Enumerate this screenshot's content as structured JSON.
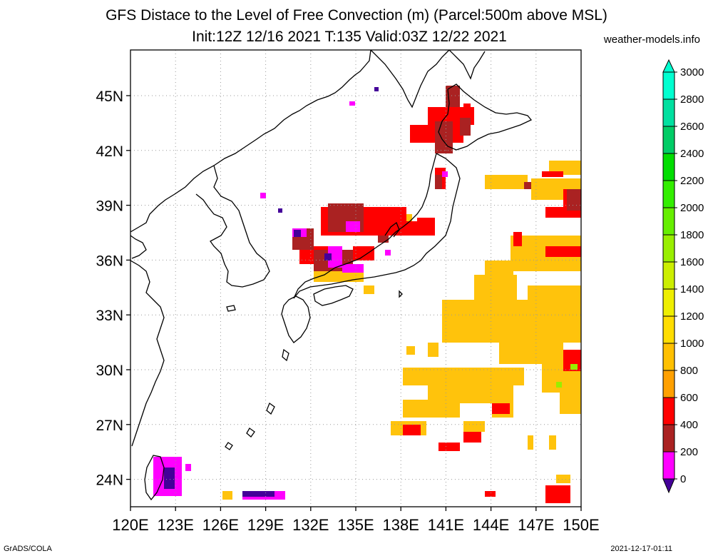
{
  "header": {
    "title_line1": "GFS Distace to the Level of Free Convection (m) (Parcel:500m above MSL)",
    "title_line2": "Init:12Z 12/16 2021 T:135 Valid:03Z 12/22 2021",
    "site": "weather-models.info"
  },
  "footer": {
    "left": "GrADS/COLA",
    "right": "2021-12-17-01:11"
  },
  "map": {
    "lat_labels": [
      "45N",
      "42N",
      "39N",
      "36N",
      "33N",
      "30N",
      "27N",
      "24N"
    ],
    "lat_values": [
      45,
      42,
      39,
      36,
      33,
      30,
      27,
      24
    ],
    "lon_labels": [
      "120E",
      "123E",
      "126E",
      "129E",
      "132E",
      "135E",
      "138E",
      "141E",
      "144E",
      "147E",
      "150E"
    ],
    "lon_values": [
      120,
      123,
      126,
      129,
      132,
      135,
      138,
      141,
      144,
      147,
      150
    ],
    "lon_range": [
      120,
      150
    ],
    "lat_range": [
      22.5,
      47.5
    ],
    "grid": "dotted"
  },
  "colorbar": {
    "labels": [
      "3000",
      "2800",
      "2600",
      "2400",
      "2200",
      "2000",
      "1800",
      "1600",
      "1400",
      "1200",
      "1000",
      "800",
      "600",
      "400",
      "200",
      "0"
    ],
    "colors": [
      "#00ffd0",
      "#00e0a0",
      "#00cc66",
      "#00dd00",
      "#33ee00",
      "#66ee00",
      "#99ee00",
      "#ccee00",
      "#eeee00",
      "#ffdd00",
      "#ffc000",
      "#ffa000",
      "#ff0000",
      "#aa2222",
      "#ff00ff",
      "#440099"
    ]
  }
}
